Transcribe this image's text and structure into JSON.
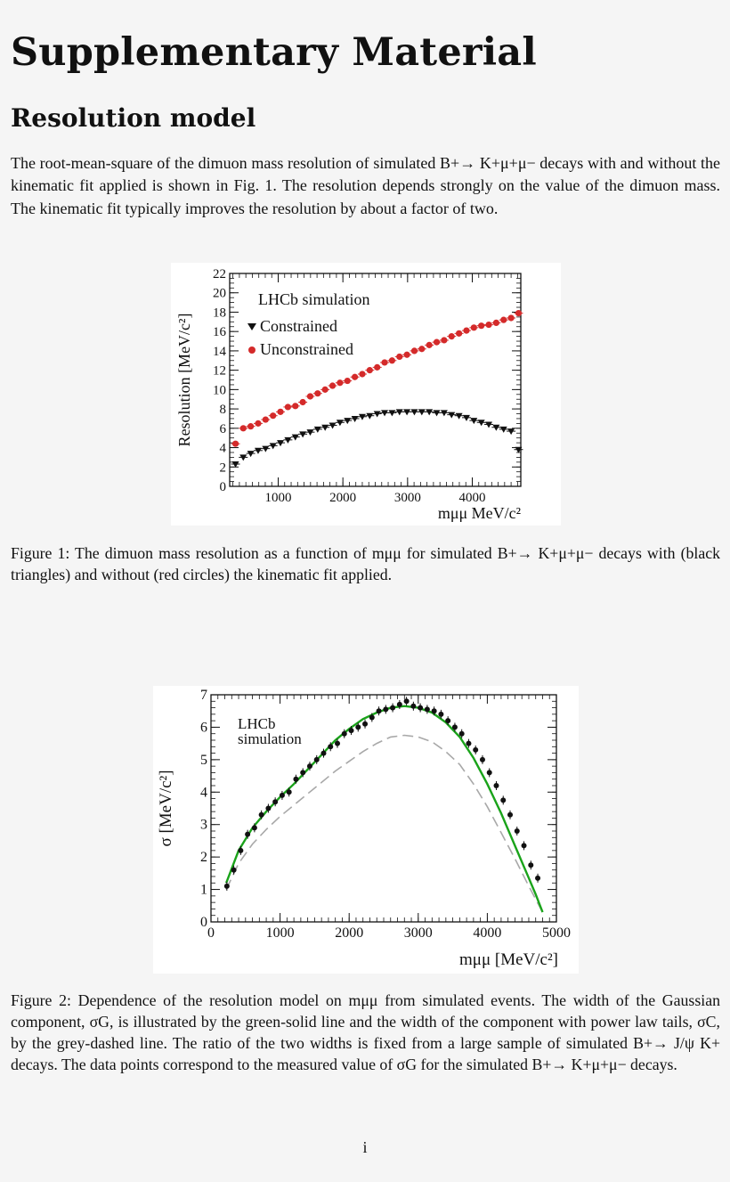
{
  "doc": {
    "title": "Supplementary Material",
    "section": "Resolution model",
    "paragraph": "The root-mean-square of the dimuon mass resolution of simulated B+→ K+μ+μ− decays with and without the kinematic fit applied is shown in Fig. 1. The resolution depends strongly on the value of the dimuon mass. The kinematic fit typically improves the resolution by about a factor of two.",
    "figure1_caption": "Figure 1: The dimuon mass resolution as a function of mμμ for simulated B+→ K+μ+μ− decays with (black triangles) and without (red circles) the kinematic fit applied.",
    "figure2_caption": "Figure 2: Dependence of the resolution model on mμμ from simulated events. The width of the Gaussian component, σG, is illustrated by the green-solid line and the width of the component with power law tails, σC, by the grey-dashed line. The ratio of the two widths is fixed from a large sample of simulated B+→ J/ψ K+ decays. The data points correspond to the measured value of σG for the simulated B+→ K+μ+μ− decays.",
    "page_number": "i"
  },
  "chart_data": [
    {
      "type": "scatter",
      "ylabel": "Resolution [MeV/c²]",
      "xlabel": "mμμ MeV/c²",
      "annotation": "LHCb simulation",
      "xlim": [
        250,
        4750
      ],
      "ylim": [
        0,
        22
      ],
      "x_ticks": [
        1000,
        2000,
        3000,
        4000
      ],
      "y_ticks": [
        0,
        2,
        4,
        6,
        8,
        10,
        12,
        14,
        16,
        18,
        20,
        22
      ],
      "legend_position": "top-left",
      "colors": {
        "constrained": "#111111",
        "unconstrained": "#d42a2a"
      },
      "x": [
        340,
        460,
        575,
        690,
        805,
        920,
        1035,
        1150,
        1265,
        1380,
        1495,
        1610,
        1725,
        1840,
        1955,
        2070,
        2185,
        2300,
        2415,
        2530,
        2645,
        2760,
        2875,
        2990,
        3105,
        3220,
        3335,
        3450,
        3565,
        3680,
        3795,
        3910,
        4025,
        4140,
        4255,
        4370,
        4485,
        4600,
        4715
      ],
      "series": [
        {
          "name": "Constrained",
          "marker": "triangle-down",
          "values": [
            2.3,
            3.0,
            3.4,
            3.7,
            3.9,
            4.2,
            4.5,
            4.8,
            5.1,
            5.4,
            5.6,
            5.9,
            6.1,
            6.3,
            6.6,
            6.8,
            7.0,
            7.2,
            7.3,
            7.5,
            7.6,
            7.6,
            7.7,
            7.7,
            7.7,
            7.7,
            7.7,
            7.6,
            7.6,
            7.4,
            7.3,
            7.1,
            6.8,
            6.6,
            6.4,
            6.1,
            5.9,
            5.7,
            3.8
          ]
        },
        {
          "name": "Unconstrained",
          "marker": "circle",
          "values": [
            4.4,
            6.0,
            6.2,
            6.5,
            6.9,
            7.3,
            7.7,
            8.2,
            8.3,
            8.7,
            9.3,
            9.6,
            10.0,
            10.4,
            10.7,
            10.9,
            11.3,
            11.6,
            12.0,
            12.3,
            12.8,
            13.0,
            13.4,
            13.6,
            14.0,
            14.2,
            14.6,
            14.9,
            15.1,
            15.5,
            15.8,
            16.1,
            16.4,
            16.6,
            16.7,
            16.9,
            17.2,
            17.4,
            17.9
          ]
        }
      ]
    },
    {
      "type": "line",
      "ylabel": "σ [MeV/c²]",
      "xlabel": "mμμ [MeV/c²]",
      "annotation": "LHCb\nsimulation",
      "xlim": [
        0,
        5000
      ],
      "ylim": [
        0,
        7
      ],
      "x_ticks": [
        0,
        1000,
        2000,
        3000,
        4000,
        5000
      ],
      "y_ticks": [
        0,
        1,
        2,
        3,
        4,
        5,
        6,
        7
      ],
      "colors": {
        "green": "#1aa31a",
        "grey": "#a8a8a8",
        "points": "#111111"
      },
      "series": [
        {
          "name": "σG",
          "style": "green-solid",
          "x": [
            220,
            400,
            600,
            800,
            1000,
            1200,
            1400,
            1600,
            1800,
            2000,
            2200,
            2400,
            2600,
            2800,
            3000,
            3200,
            3400,
            3600,
            3800,
            4000,
            4200,
            4400,
            4600,
            4700,
            4800
          ],
          "values": [
            1.2,
            2.2,
            2.9,
            3.4,
            3.85,
            4.25,
            4.7,
            5.15,
            5.6,
            5.95,
            6.25,
            6.45,
            6.6,
            6.65,
            6.6,
            6.45,
            6.15,
            5.7,
            5.05,
            4.25,
            3.35,
            2.35,
            1.35,
            0.85,
            0.3
          ]
        },
        {
          "name": "σC",
          "style": "grey-dashed",
          "x": [
            220,
            400,
            600,
            800,
            1000,
            1200,
            1400,
            1600,
            1800,
            2000,
            2200,
            2400,
            2600,
            2800,
            3000,
            3200,
            3400,
            3600,
            3800,
            4000,
            4200,
            4400,
            4600,
            4700,
            4800
          ],
          "values": [
            1.0,
            1.8,
            2.4,
            2.85,
            3.25,
            3.6,
            3.95,
            4.3,
            4.65,
            4.95,
            5.25,
            5.5,
            5.7,
            5.75,
            5.7,
            5.55,
            5.25,
            4.85,
            4.25,
            3.55,
            2.75,
            1.95,
            1.1,
            0.7,
            0.3
          ]
        },
        {
          "name": "data",
          "style": "points",
          "x": [
            230,
            330,
            430,
            530,
            630,
            730,
            830,
            930,
            1030,
            1130,
            1230,
            1330,
            1430,
            1530,
            1630,
            1730,
            1830,
            1930,
            2030,
            2130,
            2230,
            2330,
            2430,
            2530,
            2630,
            2730,
            2830,
            2930,
            3030,
            3130,
            3230,
            3330,
            3430,
            3530,
            3630,
            3730,
            3830,
            3930,
            4030,
            4130,
            4230,
            4330,
            4430,
            4530,
            4630,
            4730
          ],
          "values": [
            1.1,
            1.6,
            2.2,
            2.7,
            2.9,
            3.3,
            3.5,
            3.7,
            3.9,
            4.0,
            4.4,
            4.6,
            4.8,
            5.0,
            5.2,
            5.4,
            5.5,
            5.8,
            5.9,
            6.0,
            6.1,
            6.3,
            6.5,
            6.55,
            6.6,
            6.7,
            6.8,
            6.65,
            6.6,
            6.55,
            6.5,
            6.4,
            6.2,
            6.0,
            5.8,
            5.5,
            5.3,
            5.0,
            4.6,
            4.2,
            3.75,
            3.3,
            2.8,
            2.35,
            1.75,
            1.35
          ]
        }
      ]
    }
  ]
}
